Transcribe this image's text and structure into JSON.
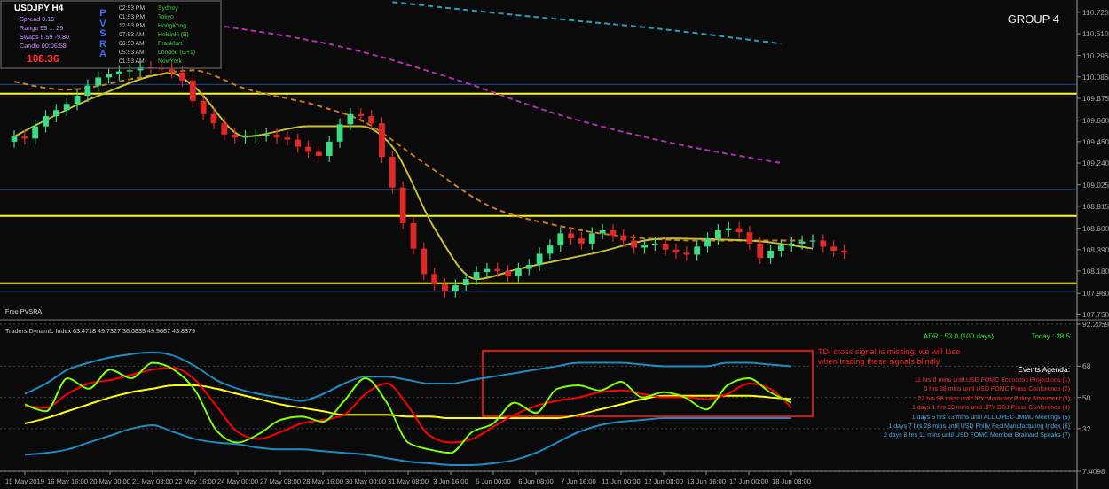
{
  "chart_data": [
    {
      "type": "candlestick",
      "title": "USDJPY H4",
      "tick_labels": "y",
      "categories": [
        null,
        null,
        null,
        null,
        null,
        null,
        null,
        null,
        null,
        null,
        null,
        null,
        null,
        null,
        null,
        null,
        null,
        null,
        null,
        null,
        null,
        null,
        null,
        null,
        null,
        null,
        null,
        null,
        null,
        null,
        null,
        null,
        null,
        null,
        null,
        null,
        null,
        null,
        null,
        null,
        null,
        null,
        null,
        null,
        null,
        null,
        null,
        null,
        null,
        null,
        null,
        null,
        null,
        null,
        null,
        null,
        null,
        null,
        null,
        null,
        null,
        null,
        null,
        null,
        null,
        null,
        null,
        null,
        null,
        null,
        null,
        null,
        null,
        null,
        null,
        null,
        null,
        null,
        null,
        null,
        null,
        null,
        null,
        null,
        null,
        null,
        null,
        null,
        null,
        null,
        null,
        null,
        null,
        null,
        null,
        null,
        null,
        null,
        null,
        null,
        null,
        null
      ],
      "ohlc": [
        [
          109.45,
          109.56,
          109.39,
          109.5
        ],
        [
          109.5,
          109.56,
          109.42,
          109.48
        ],
        [
          109.48,
          109.66,
          109.42,
          109.6
        ],
        [
          109.6,
          109.76,
          109.54,
          109.7
        ],
        [
          109.7,
          109.82,
          109.64,
          109.76
        ],
        [
          109.76,
          109.88,
          109.7,
          109.82
        ],
        [
          109.82,
          109.96,
          109.76,
          109.9
        ],
        [
          109.9,
          110.06,
          109.84,
          110.0
        ],
        [
          110.0,
          110.14,
          109.94,
          110.08
        ],
        [
          110.08,
          110.17,
          110.02,
          110.11
        ],
        [
          110.11,
          110.2,
          110.05,
          110.14
        ],
        [
          110.14,
          110.21,
          110.08,
          110.15
        ],
        [
          110.15,
          110.24,
          110.09,
          110.18
        ],
        [
          110.18,
          110.24,
          110.11,
          110.17
        ],
        [
          110.17,
          110.23,
          110.1,
          110.16
        ],
        [
          110.16,
          110.22,
          110.07,
          110.13
        ],
        [
          110.13,
          110.19,
          109.99,
          110.05
        ],
        [
          110.05,
          110.11,
          109.79,
          109.85
        ],
        [
          109.85,
          109.91,
          109.66,
          109.72
        ],
        [
          109.72,
          109.78,
          109.57,
          109.63
        ],
        [
          109.63,
          109.69,
          109.46,
          109.52
        ],
        [
          109.52,
          109.58,
          109.43,
          109.49
        ],
        [
          109.49,
          109.56,
          109.43,
          109.5
        ],
        [
          109.5,
          109.57,
          109.44,
          109.51
        ],
        [
          109.51,
          109.58,
          109.45,
          109.52
        ],
        [
          109.52,
          109.58,
          109.43,
          109.49
        ],
        [
          109.49,
          109.55,
          109.41,
          109.47
        ],
        [
          109.47,
          109.53,
          109.34,
          109.4
        ],
        [
          109.4,
          109.46,
          109.29,
          109.35
        ],
        [
          109.35,
          109.41,
          109.25,
          109.31
        ],
        [
          109.31,
          109.51,
          109.25,
          109.45
        ],
        [
          109.45,
          109.68,
          109.39,
          109.62
        ],
        [
          109.62,
          109.78,
          109.56,
          109.72
        ],
        [
          109.72,
          109.78,
          109.64,
          109.7
        ],
        [
          109.7,
          109.76,
          109.57,
          109.63
        ],
        [
          109.63,
          109.69,
          109.24,
          109.3
        ],
        [
          109.3,
          109.36,
          108.94,
          109.0
        ],
        [
          109.0,
          109.06,
          108.59,
          108.65
        ],
        [
          108.65,
          108.71,
          108.34,
          108.4
        ],
        [
          108.4,
          108.46,
          108.09,
          108.15
        ],
        [
          108.15,
          108.21,
          107.99,
          108.05
        ],
        [
          108.05,
          108.11,
          107.92,
          107.98
        ],
        [
          107.98,
          108.1,
          107.92,
          108.04
        ],
        [
          108.04,
          108.16,
          107.98,
          108.1
        ],
        [
          108.1,
          108.23,
          108.04,
          108.17
        ],
        [
          108.17,
          108.26,
          108.11,
          108.2
        ],
        [
          108.2,
          108.26,
          108.12,
          108.18
        ],
        [
          108.18,
          108.24,
          108.07,
          108.13
        ],
        [
          108.13,
          108.26,
          108.07,
          108.2
        ],
        [
          108.2,
          108.3,
          108.14,
          108.24
        ],
        [
          108.24,
          108.41,
          108.18,
          108.35
        ],
        [
          108.35,
          108.49,
          108.29,
          108.43
        ],
        [
          108.43,
          108.61,
          108.37,
          108.55
        ],
        [
          108.55,
          108.61,
          108.44,
          108.5
        ],
        [
          108.5,
          108.56,
          108.39,
          108.45
        ],
        [
          108.45,
          108.61,
          108.39,
          108.55
        ],
        [
          108.55,
          108.64,
          108.49,
          108.58
        ],
        [
          108.58,
          108.64,
          108.47,
          108.53
        ],
        [
          108.53,
          108.59,
          108.42,
          108.48
        ],
        [
          108.48,
          108.54,
          108.35,
          108.41
        ],
        [
          108.41,
          108.5,
          108.35,
          108.44
        ],
        [
          108.44,
          108.51,
          108.38,
          108.45
        ],
        [
          108.45,
          108.51,
          108.33,
          108.39
        ],
        [
          108.39,
          108.45,
          108.3,
          108.36
        ],
        [
          108.36,
          108.42,
          108.28,
          108.34
        ],
        [
          108.34,
          108.48,
          108.28,
          108.42
        ],
        [
          108.42,
          108.56,
          108.36,
          108.5
        ],
        [
          108.5,
          108.64,
          108.44,
          108.58
        ],
        [
          108.58,
          108.66,
          108.52,
          108.6
        ],
        [
          108.6,
          108.66,
          108.5,
          108.56
        ],
        [
          108.56,
          108.62,
          108.39,
          108.45
        ],
        [
          108.45,
          108.51,
          108.25,
          108.31
        ],
        [
          108.31,
          108.44,
          108.25,
          108.38
        ],
        [
          108.38,
          108.49,
          108.32,
          108.43
        ],
        [
          108.43,
          108.51,
          108.37,
          108.45
        ],
        [
          108.45,
          108.53,
          108.39,
          108.47
        ],
        [
          108.47,
          108.54,
          108.41,
          108.48
        ],
        [
          108.48,
          108.54,
          108.36,
          108.42
        ],
        [
          108.42,
          108.48,
          108.32,
          108.38
        ],
        [
          108.38,
          108.44,
          108.3,
          108.36
        ],
        null,
        null,
        null,
        null,
        null,
        null,
        null,
        null,
        null,
        null,
        null,
        null,
        null,
        null,
        null,
        null,
        null,
        null,
        null,
        null,
        null,
        null
      ],
      "series": [
        {
          "type": "line",
          "color": "#b030b0",
          "line_style": "dashed",
          "values": [
            null,
            null,
            null,
            null,
            null,
            null,
            null,
            null,
            null,
            null,
            null,
            null,
            null,
            null,
            null,
            null,
            null,
            null,
            null,
            null,
            110.58,
            null,
            null,
            null,
            null,
            null,
            null,
            null,
            null,
            null,
            null,
            null,
            110.36,
            null,
            null,
            null,
            null,
            null,
            null,
            null,
            null,
            null,
            110.06,
            null,
            null,
            null,
            null,
            null,
            null,
            null,
            null,
            null,
            109.71,
            null,
            null,
            null,
            null,
            null,
            null,
            null,
            null,
            null,
            109.45,
            null,
            null,
            null,
            null,
            null,
            null,
            null,
            null,
            null,
            null,
            109.24,
            null,
            null,
            null,
            null,
            null,
            null,
            null,
            null,
            null,
            null,
            null,
            null,
            null,
            null,
            null,
            null,
            null,
            null,
            null,
            null,
            null,
            null,
            null,
            null,
            null,
            null,
            null,
            null
          ]
        },
        {
          "type": "line",
          "color": "#2a9cc0",
          "line_style": "dashed",
          "values": [
            null,
            null,
            null,
            null,
            null,
            null,
            null,
            null,
            null,
            null,
            null,
            null,
            null,
            null,
            null,
            null,
            null,
            null,
            null,
            null,
            null,
            null,
            null,
            null,
            null,
            null,
            null,
            null,
            null,
            null,
            null,
            null,
            null,
            null,
            null,
            null,
            110.82,
            null,
            null,
            null,
            null,
            null,
            null,
            null,
            null,
            null,
            null,
            null,
            110.69,
            null,
            null,
            null,
            null,
            null,
            null,
            null,
            null,
            null,
            null,
            null,
            null,
            null,
            110.55,
            null,
            null,
            null,
            null,
            null,
            null,
            null,
            null,
            null,
            null,
            110.41,
            null,
            null,
            null,
            null,
            null,
            null,
            null,
            null,
            null,
            null,
            null,
            null,
            null,
            null,
            null,
            null,
            null,
            null,
            null,
            null,
            null,
            null,
            null,
            null,
            null,
            null,
            null,
            null
          ]
        },
        {
          "type": "line",
          "color": "#c87a20",
          "line_style": "dashed",
          "values": [
            110.04,
            null,
            null,
            null,
            null,
            109.96,
            null,
            null,
            null,
            null,
            null,
            null,
            110.08,
            null,
            null,
            null,
            null,
            110.15,
            null,
            null,
            null,
            null,
            109.97,
            null,
            null,
            null,
            null,
            null,
            null,
            109.8,
            null,
            null,
            null,
            109.66,
            null,
            null,
            null,
            null,
            null,
            109.24,
            null,
            null,
            null,
            null,
            null,
            108.83,
            null,
            null,
            null,
            null,
            null,
            null,
            108.62,
            null,
            null,
            null,
            null,
            null,
            null,
            108.51,
            null,
            null,
            null,
            null,
            null,
            108.48,
            null,
            null,
            null,
            null,
            null,
            null,
            null,
            null,
            null,
            108.48,
            null,
            null,
            null,
            null,
            null,
            null,
            null,
            null,
            null,
            null,
            null,
            null,
            null,
            null,
            null,
            null,
            null,
            null,
            null,
            null,
            null,
            null,
            null,
            null,
            null,
            null
          ]
        },
        {
          "type": "line",
          "color": "#c8c030",
          "line_style": "solid",
          "values": [
            109.5,
            null,
            null,
            null,
            null,
            null,
            null,
            null,
            109.9,
            null,
            null,
            null,
            null,
            null,
            null,
            110.12,
            null,
            110.0,
            null,
            null,
            null,
            null,
            109.5,
            null,
            null,
            null,
            null,
            null,
            109.6,
            null,
            null,
            null,
            null,
            109.6,
            null,
            null,
            109.4,
            null,
            null,
            null,
            108.6,
            null,
            null,
            null,
            108.1,
            null,
            null,
            null,
            108.2,
            null,
            null,
            null,
            null,
            null,
            null,
            108.35,
            null,
            null,
            null,
            null,
            null,
            null,
            108.5,
            null,
            null,
            null,
            null,
            null,
            null,
            null,
            108.48,
            null,
            null,
            null,
            null,
            null,
            108.4,
            null,
            null,
            null,
            null,
            null,
            null,
            null,
            null,
            null,
            null,
            null,
            null,
            null,
            null,
            null,
            null,
            null,
            null,
            null,
            null,
            null,
            null,
            null,
            null,
            null
          ]
        }
      ],
      "ylim": [
        107.71,
        110.84
      ],
      "yticks": [
        {
          "value": 110.72,
          "label": "110.720"
        },
        {
          "value": 110.51,
          "label": "110.510"
        },
        {
          "value": 110.295,
          "label": "110.295"
        },
        {
          "value": 110.085,
          "label": "110.085"
        },
        {
          "value": 109.875,
          "label": "109.875"
        },
        {
          "value": 109.66,
          "label": "109.660"
        },
        {
          "value": 109.45,
          "label": "109.450"
        },
        {
          "value": 109.24,
          "label": "109.240"
        },
        {
          "value": 109.025,
          "label": "109.025"
        },
        {
          "value": 108.815,
          "label": "108.815"
        },
        {
          "value": 108.6,
          "label": "108.600"
        },
        {
          "value": 108.39,
          "label": "108.390"
        },
        {
          "value": 108.18,
          "label": "108.180"
        },
        {
          "value": 107.96,
          "label": "107.960"
        },
        {
          "value": 107.75,
          "label": "107.750"
        }
      ],
      "ref_lines": [
        {
          "axis": "y",
          "value": 109.92,
          "color": "#ffff00"
        },
        {
          "axis": "y",
          "value": 108.72,
          "color": "#ffff00"
        },
        {
          "axis": "y",
          "value": 108.06,
          "color": "#ffff00"
        },
        {
          "axis": "y",
          "value": 110.01,
          "color": "#1c3f7a"
        },
        {
          "axis": "y",
          "value": 108.98,
          "color": "#1c3f7a"
        },
        {
          "axis": "y",
          "value": 107.98,
          "color": "#1c3f7a"
        }
      ],
      "annotations": [
        "GROUP 4",
        "Spread 0.10",
        "Range 55 ... 29",
        "Swaps 5.59 -9.80",
        "Candle 00:06:58",
        "108.36",
        "PVSRA",
        "02:53 PM",
        "01:53 PM",
        "12:53 PM",
        "07:53 AM",
        "06:53 AM",
        "05:53 AM",
        "01:53 AM",
        "Sydney",
        "Tokyo",
        "HongKong",
        "Helsinki (B)",
        "Frankfurt",
        "London (G+1)",
        "NewYork",
        "Free PVSRA"
      ]
    },
    {
      "type": "line",
      "title": "Traders Dynamic Index 63.4718 49.7327 36.0835 49.9667 43.8379",
      "grid": "y",
      "categories": [
        "15 May 2019",
        null,
        "16 May 16:00",
        null,
        "20 May 00:00",
        null,
        "21 May 08:00",
        null,
        "22 May 16:00",
        null,
        "24 May 00:00",
        null,
        "27 May 08:00",
        null,
        "28 May 16:00",
        null,
        "30 May 00:00",
        null,
        "31 May 08:00",
        null,
        "3 Jun 16:00",
        null,
        "5 Jun 00:00",
        null,
        "6 Jun 08:00",
        null,
        "7 Jun 16:00",
        null,
        "11 Jun 00:00",
        null,
        "12 Jun 08:00",
        null,
        "13 Jun 16:00",
        null,
        "17 Jun 00:00",
        null,
        "18 Jun 08:00",
        null,
        null,
        null,
        null,
        null,
        null,
        null,
        null,
        null,
        null,
        null,
        null,
        null
      ],
      "series": [
        {
          "color": "#1e8cc0",
          "values": [
            52,
            58,
            66,
            70,
            73,
            75,
            76,
            74,
            68,
            60,
            55,
            52,
            50,
            48,
            52,
            58,
            62,
            62,
            60,
            58,
            58,
            60,
            62,
            64,
            66,
            68,
            70,
            70,
            70,
            69,
            68,
            68,
            68,
            70,
            70,
            69,
            68,
            null,
            null,
            null,
            null,
            null,
            null,
            null,
            null,
            null,
            null,
            null,
            null,
            null
          ]
        },
        {
          "color": "#1e8cc0",
          "values": [
            17,
            18,
            20,
            24,
            28,
            32,
            34,
            30,
            26,
            24,
            23,
            21,
            20,
            20,
            19,
            18,
            17,
            15,
            13,
            12,
            11,
            11,
            12,
            14,
            18,
            24,
            30,
            34,
            36,
            37,
            38,
            38,
            38,
            38,
            38,
            38,
            38,
            null,
            null,
            null,
            null,
            null,
            null,
            null,
            null,
            null,
            null,
            null,
            null,
            null
          ]
        },
        {
          "color": "#ffff00",
          "values": [
            35,
            38,
            42,
            46,
            50,
            53,
            55,
            57,
            57,
            55,
            52,
            49,
            46,
            44,
            42,
            40,
            40,
            40,
            39,
            39,
            38,
            38,
            38,
            38,
            38,
            38,
            40,
            43,
            46,
            49,
            51,
            51,
            51,
            51,
            51,
            50,
            49,
            null,
            null,
            null,
            null,
            null,
            null,
            null,
            null,
            null,
            null,
            null,
            null,
            null
          ]
        },
        {
          "color": "#ff0000",
          "values": [
            45,
            44,
            52,
            58,
            60,
            63,
            66,
            67,
            60,
            45,
            30,
            26,
            30,
            35,
            37,
            40,
            52,
            58,
            45,
            28,
            24,
            26,
            33,
            40,
            45,
            48,
            50,
            53,
            54,
            52,
            50,
            50,
            49,
            52,
            58,
            55,
            44,
            null,
            null,
            null,
            null,
            null,
            null,
            null,
            null,
            null,
            null,
            null,
            null,
            null
          ]
        },
        {
          "color": "#7fff00",
          "values": [
            46,
            42,
            61,
            55,
            66,
            61,
            70,
            66,
            54,
            31,
            24,
            29,
            37,
            39,
            36,
            48,
            61,
            47,
            24,
            20,
            18,
            30,
            35,
            47,
            41,
            55,
            57,
            54,
            59,
            50,
            53,
            50,
            43,
            57,
            61,
            53,
            47,
            null,
            null,
            null,
            null,
            null,
            null,
            null,
            null,
            null,
            null,
            null,
            null,
            null
          ]
        }
      ],
      "ylim": [
        7.4098,
        92.2059
      ],
      "yticks": [
        92.2059,
        68,
        50,
        32,
        7.4098
      ],
      "annotations": [
        "TDI cross signal is missing, we will lose when trading these signals blindly",
        "ADR : 53.0  (100 days)",
        "Today : 28.5",
        "Events Agenda:",
        "11 hrs 0 mins until USD FOMC Economic Projections  (1)",
        "0 hrs 38 mins until USD FOMC Press Conference  (2)",
        "22 hrs 58 mins until JPY Monetary Policy Statement  (3)",
        "1 days 1 hrs 38 mins until JPY BOJ Press Conference  (4)",
        "1 days 5 hrs 23 mins until ALL OPEC-JMMC Meetings  (5)",
        "1 days 7 hrs 28 mins until USD Philly Fed Manufacturing Index  (6)",
        "2 days 8 hrs 11 mins until USD FOMC Member Brainard Speaks  (7)"
      ]
    }
  ]
}
